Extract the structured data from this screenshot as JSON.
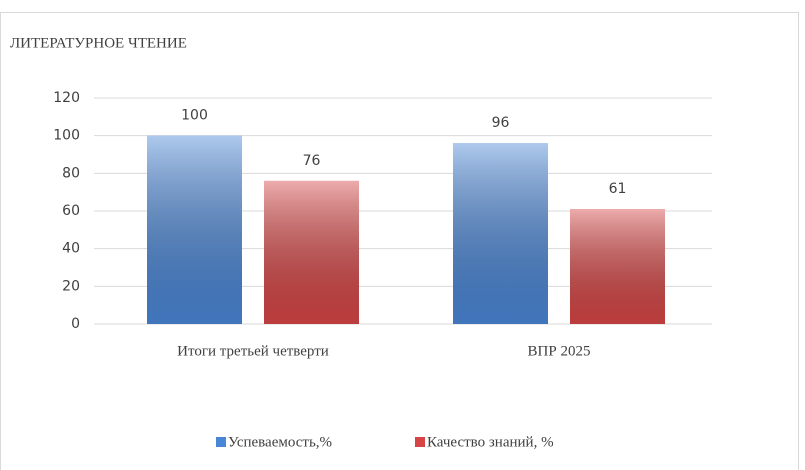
{
  "chart_data": {
    "type": "bar",
    "title": "ЛИТЕРАТУРНОЕ ЧТЕНИЕ",
    "categories": [
      "Итоги третьей четверти",
      "ВПР 2025"
    ],
    "series": [
      {
        "name": "Успеваемость,%",
        "color": "#4a86d6",
        "values": [
          100,
          96
        ]
      },
      {
        "name": "Качество знаний, %",
        "color": "#d64545",
        "values": [
          76,
          61
        ]
      }
    ],
    "ylim": [
      0,
      120
    ],
    "yticks": [
      0,
      20,
      40,
      60,
      80,
      100,
      120
    ],
    "grid": true,
    "legend": "bottom"
  }
}
